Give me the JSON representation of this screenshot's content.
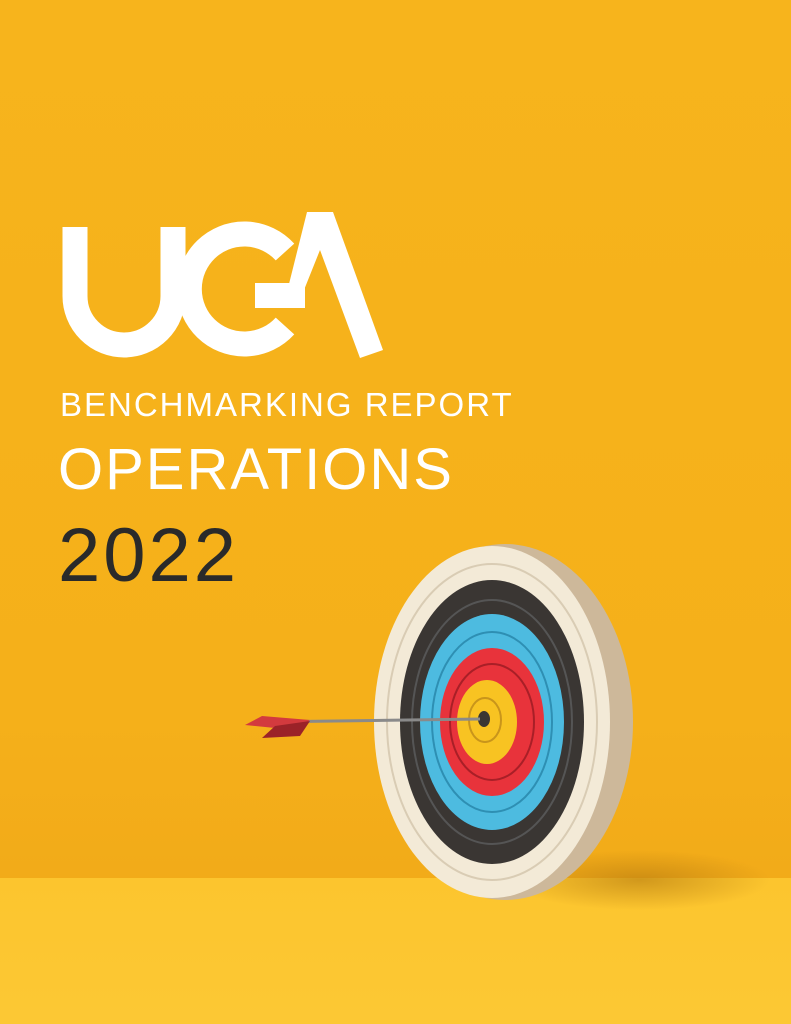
{
  "logo": {
    "text": "UCA",
    "color": "#ffffff"
  },
  "cover": {
    "subtitle": "BENCHMARKING REPORT",
    "title": "OPERATIONS",
    "year": "2022"
  },
  "colors": {
    "background": "#f7b41c",
    "floor": "#fcc834",
    "year_text": "#2a2a2a"
  },
  "illustration": {
    "subject": "archery-target-with-arrow"
  }
}
